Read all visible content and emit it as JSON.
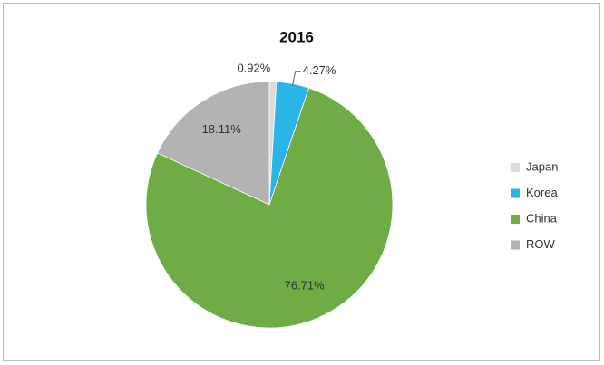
{
  "chart_data": {
    "type": "pie",
    "title": "2016",
    "categories": [
      "Japan",
      "Korea",
      "China",
      "ROW"
    ],
    "values": [
      0.92,
      4.27,
      76.71,
      18.11
    ],
    "value_labels": [
      "0.92%",
      "4.27%",
      "76.71%",
      "18.11%"
    ],
    "colors": [
      "#dcdcdc",
      "#2ab4e8",
      "#6fac46",
      "#b3b3b5"
    ],
    "legend": "right"
  }
}
